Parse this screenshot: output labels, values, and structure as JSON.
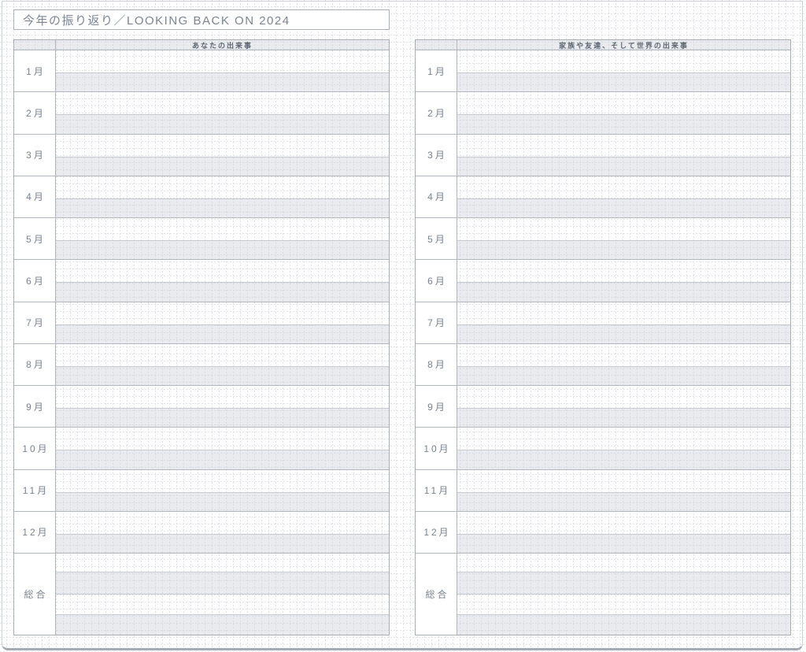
{
  "page_title": "今年の振り返り／LOOKING BACK ON 2024",
  "tables": {
    "left": {
      "header": "あなたの出来事"
    },
    "right": {
      "header": "家族や友達、そして世界の出来事"
    }
  },
  "months": [
    "1月",
    "2月",
    "3月",
    "4月",
    "5月",
    "6月",
    "7月",
    "8月",
    "9月",
    "10月",
    "11月",
    "12月"
  ],
  "summary_label": "総合",
  "colors": {
    "grid_line": "#dfe2e7",
    "table_border": "#a8adb4",
    "row_line": "#b2b7be",
    "band_line": "#c6cad0",
    "shaded_band": "#eaecef",
    "label_text": "#79828e",
    "header_text": "#5e6671",
    "title_text": "#7b8490",
    "page_edge": "#a4aab2"
  }
}
